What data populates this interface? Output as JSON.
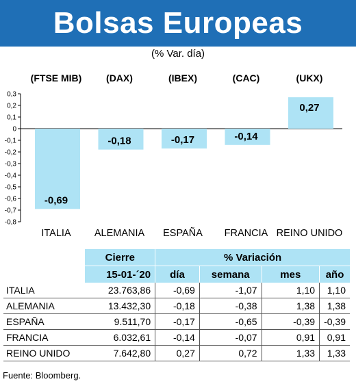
{
  "title": "Bolsas Europeas",
  "subtitle": "(% Var. día)",
  "chart_data": {
    "type": "bar",
    "indices": [
      "(FTSE MIB)",
      "(DAX)",
      "(IBEX)",
      "(CAC)",
      "(UKX)"
    ],
    "categories": [
      "ITALIA",
      "ALEMANIA",
      "ESPAÑA",
      "FRANCIA",
      "REINO UNIDO"
    ],
    "values": [
      -0.69,
      -0.18,
      -0.17,
      -0.14,
      0.27
    ],
    "value_labels": [
      "-0,69",
      "-0,18",
      "-0,17",
      "-0,14",
      "0,27"
    ],
    "ylim": [
      -0.8,
      0.3
    ],
    "yticks": [
      0.3,
      0.2,
      0.1,
      0,
      -0.1,
      -0.2,
      -0.3,
      -0.4,
      -0.5,
      -0.6,
      -0.7,
      -0.8
    ],
    "ytick_labels": [
      "0,3",
      "0,2",
      "0,1",
      "0",
      "-0,1",
      "-0,2",
      "-0,3",
      "-0,4",
      "-0,5",
      "-0,6",
      "-0,7",
      "-0,8"
    ],
    "bar_color": "#aee3f5",
    "grid": false
  },
  "table": {
    "header_cierre": "Cierre",
    "header_variacion": "% Variación",
    "date": "15-01-´20",
    "col_dia": "día",
    "col_semana": "semana",
    "col_mes": "mes",
    "col_ano": "año",
    "rows": [
      {
        "pais": "ITALIA",
        "cierre": "23.763,86",
        "dia": "-0,69",
        "semana": "-1,07",
        "mes": "1,10",
        "ano": "1,10"
      },
      {
        "pais": "ALEMANIA",
        "cierre": "13.432,30",
        "dia": "-0,18",
        "semana": "-0,38",
        "mes": "1,38",
        "ano": "1,38"
      },
      {
        "pais": "ESPAÑA",
        "cierre": "9.511,70",
        "dia": "-0,17",
        "semana": "-0,65",
        "mes": "-0,39",
        "ano": "-0,39"
      },
      {
        "pais": "FRANCIA",
        "cierre": "6.032,61",
        "dia": "-0,14",
        "semana": "-0,07",
        "mes": "0,91",
        "ano": "0,91"
      },
      {
        "pais": "REINO UNIDO",
        "cierre": "7.642,80",
        "dia": "0,27",
        "semana": "0,72",
        "mes": "1,33",
        "ano": "1,33"
      }
    ]
  },
  "source": "Fuente: Bloomberg."
}
